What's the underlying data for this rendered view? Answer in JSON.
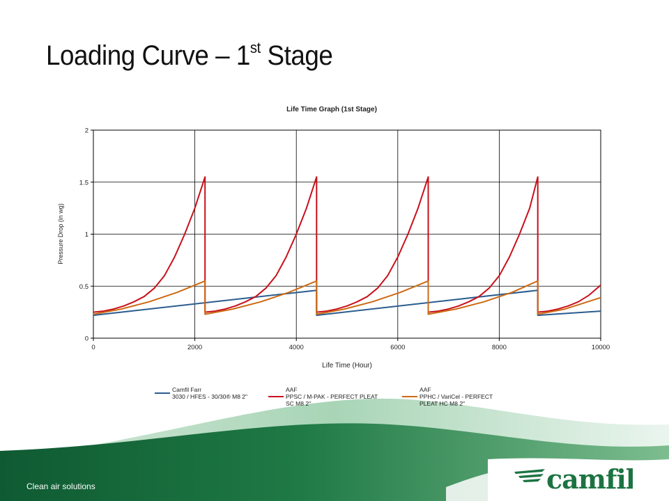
{
  "slide": {
    "title_main": "Loading Curve – 1",
    "title_sup": "st",
    "title_end": " Stage",
    "footer_text": "Clean air solutions",
    "logo_text": "camfil"
  },
  "colors": {
    "camfil": "#2a5c8f",
    "aaf_ppsc": "#c8101a",
    "aaf_pphc": "#cc6a12",
    "green": "#1f7a45",
    "logo": "#1c7342"
  },
  "chart_data": {
    "type": "line",
    "title": "Life Time Graph (1st Stage)",
    "xlabel": "Life Time (Hour)",
    "ylabel": "Pressure Drop (in wg)",
    "xlim": [
      0,
      10000
    ],
    "ylim": [
      0,
      2
    ],
    "xticks": [
      "0",
      "2000",
      "4000",
      "6000",
      "8000",
      "10000"
    ],
    "yticks": [
      "0",
      "0.5",
      "1",
      "1.5",
      "2"
    ],
    "grid": true,
    "legend_position": "bottom",
    "series": [
      {
        "name_line1": "Camfil Farr",
        "name_line2": "3030 / HFES - 30/30® M8 2\"",
        "name_line3": "",
        "color": "#2a5c8f",
        "points": [
          [
            0,
            0.22
          ],
          [
            4400,
            0.46
          ],
          [
            4400,
            0.22
          ],
          [
            8760,
            0.46
          ],
          [
            8760,
            0.22
          ],
          [
            10000,
            0.26
          ]
        ]
      },
      {
        "name_line1": "AAF",
        "name_line2": "PPSC / M-PAK - PERFECT PLEAT",
        "name_line3": "SC M8 2\"",
        "color": "#c8101a",
        "points": [
          [
            0,
            0.25
          ],
          [
            200,
            0.26
          ],
          [
            400,
            0.28
          ],
          [
            600,
            0.31
          ],
          [
            800,
            0.35
          ],
          [
            1000,
            0.4
          ],
          [
            1200,
            0.48
          ],
          [
            1400,
            0.6
          ],
          [
            1600,
            0.78
          ],
          [
            1800,
            1.0
          ],
          [
            2000,
            1.25
          ],
          [
            2200,
            1.55
          ],
          [
            2200,
            0.25
          ],
          [
            2400,
            0.26
          ],
          [
            2600,
            0.28
          ],
          [
            2800,
            0.31
          ],
          [
            3000,
            0.35
          ],
          [
            3200,
            0.4
          ],
          [
            3400,
            0.48
          ],
          [
            3600,
            0.6
          ],
          [
            3800,
            0.78
          ],
          [
            4000,
            1.0
          ],
          [
            4200,
            1.25
          ],
          [
            4400,
            1.55
          ],
          [
            4400,
            0.25
          ],
          [
            4600,
            0.26
          ],
          [
            4800,
            0.28
          ],
          [
            5000,
            0.31
          ],
          [
            5200,
            0.35
          ],
          [
            5400,
            0.4
          ],
          [
            5600,
            0.48
          ],
          [
            5800,
            0.6
          ],
          [
            6000,
            0.78
          ],
          [
            6200,
            1.0
          ],
          [
            6400,
            1.25
          ],
          [
            6600,
            1.55
          ],
          [
            6600,
            0.25
          ],
          [
            6800,
            0.26
          ],
          [
            7000,
            0.28
          ],
          [
            7200,
            0.31
          ],
          [
            7400,
            0.35
          ],
          [
            7600,
            0.4
          ],
          [
            7800,
            0.48
          ],
          [
            8000,
            0.6
          ],
          [
            8200,
            0.78
          ],
          [
            8400,
            1.0
          ],
          [
            8600,
            1.25
          ],
          [
            8760,
            1.55
          ],
          [
            8760,
            0.25
          ],
          [
            8960,
            0.26
          ],
          [
            9160,
            0.28
          ],
          [
            9360,
            0.31
          ],
          [
            9560,
            0.35
          ],
          [
            9760,
            0.41
          ],
          [
            10000,
            0.51
          ]
        ]
      },
      {
        "name_line1": "AAF",
        "name_line2": "PPHC / VariCel - PERFECT",
        "name_line3": "PLEAT HC M8 2\"",
        "color": "#cc6a12",
        "points": [
          [
            0,
            0.23
          ],
          [
            550,
            0.28
          ],
          [
            1100,
            0.35
          ],
          [
            1650,
            0.44
          ],
          [
            2200,
            0.55
          ],
          [
            2200,
            0.23
          ],
          [
            2750,
            0.28
          ],
          [
            3300,
            0.35
          ],
          [
            3850,
            0.44
          ],
          [
            4400,
            0.55
          ],
          [
            4400,
            0.23
          ],
          [
            4950,
            0.28
          ],
          [
            5500,
            0.35
          ],
          [
            6050,
            0.44
          ],
          [
            6600,
            0.55
          ],
          [
            6600,
            0.23
          ],
          [
            7150,
            0.28
          ],
          [
            7700,
            0.35
          ],
          [
            8250,
            0.44
          ],
          [
            8760,
            0.55
          ],
          [
            8760,
            0.23
          ],
          [
            9300,
            0.28
          ],
          [
            10000,
            0.39
          ]
        ]
      }
    ]
  }
}
